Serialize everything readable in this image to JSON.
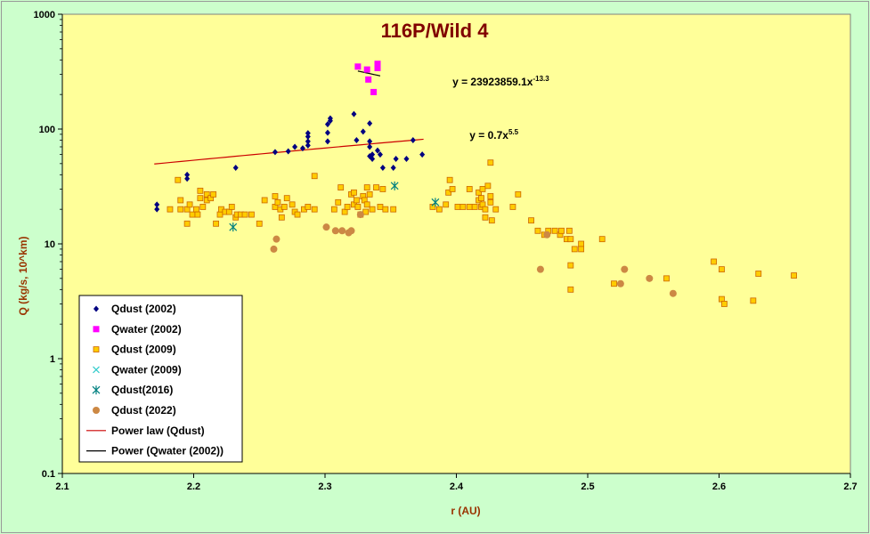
{
  "chart_data": {
    "type": "scatter",
    "title": "116P/Wild 4",
    "xlabel": "r (AU)",
    "ylabel": "Q (kg/s, 10^km)",
    "xlim": [
      2.1,
      2.7
    ],
    "ylim": [
      0.1,
      1000
    ],
    "yscale": "log",
    "grid": false,
    "legend_position": "bottom-left",
    "plot_background": "#ffff99",
    "outer_background": "#ccffcc",
    "x_ticks": [
      "2.1",
      "2.2",
      "2.3",
      "2.4",
      "2.5",
      "2.6",
      "2.7"
    ],
    "y_ticks": [
      "0.1",
      "1",
      "10",
      "100",
      "1000"
    ],
    "annotations": [
      {
        "text_base": "y = 23923859.1x",
        "text_sup": "-13.3",
        "x": 2.397,
        "y": 240
      },
      {
        "text_base": "y = 0.7x",
        "text_sup": "5.5",
        "x": 2.41,
        "y": 82
      }
    ],
    "series": [
      {
        "name": "Qdust (2002)",
        "marker": "diamond",
        "color": "#000080",
        "points": [
          [
            2.172,
            22
          ],
          [
            2.172,
            20
          ],
          [
            2.195,
            40
          ],
          [
            2.195,
            37
          ],
          [
            2.232,
            46
          ],
          [
            2.262,
            63
          ],
          [
            2.272,
            64
          ],
          [
            2.277,
            70
          ],
          [
            2.283,
            68
          ],
          [
            2.287,
            72
          ],
          [
            2.287,
            78
          ],
          [
            2.287,
            86
          ],
          [
            2.287,
            92
          ],
          [
            2.302,
            78
          ],
          [
            2.302,
            93
          ],
          [
            2.302,
            110
          ],
          [
            2.304,
            118
          ],
          [
            2.304,
            124
          ],
          [
            2.322,
            135
          ],
          [
            2.324,
            80
          ],
          [
            2.329,
            95
          ],
          [
            2.334,
            58
          ],
          [
            2.334,
            70
          ],
          [
            2.334,
            78
          ],
          [
            2.334,
            112
          ],
          [
            2.336,
            55
          ],
          [
            2.336,
            60
          ],
          [
            2.34,
            65
          ],
          [
            2.342,
            60
          ],
          [
            2.344,
            46
          ],
          [
            2.352,
            46
          ],
          [
            2.354,
            55
          ],
          [
            2.362,
            55
          ],
          [
            2.367,
            80
          ],
          [
            2.374,
            60
          ]
        ]
      },
      {
        "name": "Qwater (2002)",
        "marker": "square",
        "color": "#ff00ff",
        "points": [
          [
            2.325,
            350
          ],
          [
            2.332,
            330
          ],
          [
            2.333,
            270
          ],
          [
            2.337,
            210
          ],
          [
            2.34,
            340
          ],
          [
            2.34,
            370
          ]
        ]
      },
      {
        "name": "Qdust (2009)",
        "marker": "square",
        "color": "#ffcc00",
        "points": [
          [
            2.182,
            20
          ],
          [
            2.188,
            36
          ],
          [
            2.19,
            24
          ],
          [
            2.19,
            20
          ],
          [
            2.195,
            20
          ],
          [
            2.195,
            15
          ],
          [
            2.197,
            22
          ],
          [
            2.199,
            18
          ],
          [
            2.202,
            20
          ],
          [
            2.203,
            18
          ],
          [
            2.205,
            29
          ],
          [
            2.205,
            25
          ],
          [
            2.207,
            21
          ],
          [
            2.21,
            27
          ],
          [
            2.21,
            24
          ],
          [
            2.213,
            25
          ],
          [
            2.215,
            27
          ],
          [
            2.217,
            15
          ],
          [
            2.22,
            18
          ],
          [
            2.221,
            20
          ],
          [
            2.224,
            19
          ],
          [
            2.227,
            19
          ],
          [
            2.229,
            21
          ],
          [
            2.232,
            17
          ],
          [
            2.233,
            18
          ],
          [
            2.236,
            18
          ],
          [
            2.239,
            18
          ],
          [
            2.244,
            18
          ],
          [
            2.25,
            15
          ],
          [
            2.254,
            24
          ],
          [
            2.262,
            26
          ],
          [
            2.262,
            21
          ],
          [
            2.264,
            23
          ],
          [
            2.266,
            20
          ],
          [
            2.267,
            17
          ],
          [
            2.269,
            21
          ],
          [
            2.271,
            25
          ],
          [
            2.275,
            22
          ],
          [
            2.277,
            19
          ],
          [
            2.279,
            18
          ],
          [
            2.284,
            20
          ],
          [
            2.287,
            21
          ],
          [
            2.292,
            39
          ],
          [
            2.292,
            20
          ],
          [
            2.307,
            20
          ],
          [
            2.31,
            23
          ],
          [
            2.312,
            31
          ],
          [
            2.315,
            19
          ],
          [
            2.317,
            21
          ],
          [
            2.32,
            27
          ],
          [
            2.322,
            28
          ],
          [
            2.322,
            22
          ],
          [
            2.324,
            24
          ],
          [
            2.325,
            21
          ],
          [
            2.327,
            18
          ],
          [
            2.329,
            26
          ],
          [
            2.33,
            24
          ],
          [
            2.331,
            19
          ],
          [
            2.332,
            22
          ],
          [
            2.332,
            31
          ],
          [
            2.334,
            27
          ],
          [
            2.336,
            20
          ],
          [
            2.339,
            31
          ],
          [
            2.342,
            21
          ],
          [
            2.344,
            30
          ],
          [
            2.346,
            20
          ],
          [
            2.352,
            20
          ],
          [
            2.382,
            21
          ],
          [
            2.387,
            20
          ],
          [
            2.392,
            22
          ],
          [
            2.394,
            28
          ],
          [
            2.395,
            36
          ],
          [
            2.397,
            30
          ],
          [
            2.401,
            21
          ],
          [
            2.405,
            21
          ],
          [
            2.41,
            30
          ],
          [
            2.41,
            21
          ],
          [
            2.414,
            21
          ],
          [
            2.417,
            24
          ],
          [
            2.417,
            28
          ],
          [
            2.419,
            25
          ],
          [
            2.419,
            21
          ],
          [
            2.42,
            30
          ],
          [
            2.42,
            22
          ],
          [
            2.422,
            20
          ],
          [
            2.422,
            17
          ],
          [
            2.424,
            32
          ],
          [
            2.426,
            51
          ],
          [
            2.426,
            26
          ],
          [
            2.426,
            23
          ],
          [
            2.427,
            16
          ],
          [
            2.43,
            20
          ],
          [
            2.443,
            21
          ],
          [
            2.447,
            27
          ],
          [
            2.457,
            16
          ],
          [
            2.462,
            13
          ],
          [
            2.467,
            12
          ],
          [
            2.47,
            13
          ],
          [
            2.475,
            13
          ],
          [
            2.479,
            12
          ],
          [
            2.48,
            13
          ],
          [
            2.484,
            11
          ],
          [
            2.486,
            13
          ],
          [
            2.487,
            11
          ],
          [
            2.487,
            6.5
          ],
          [
            2.49,
            9
          ],
          [
            2.495,
            10
          ],
          [
            2.495,
            9
          ],
          [
            2.511,
            11
          ],
          [
            2.52,
            4.5
          ],
          [
            2.56,
            5
          ],
          [
            2.596,
            7
          ],
          [
            2.602,
            6
          ],
          [
            2.602,
            3.3
          ],
          [
            2.604,
            3
          ],
          [
            2.626,
            3.2
          ],
          [
            2.63,
            5.5
          ],
          [
            2.657,
            5.3
          ],
          [
            2.487,
            4
          ]
        ]
      },
      {
        "name": "Qwater (2009)",
        "marker": "x",
        "color": "#33cccc",
        "points": []
      },
      {
        "name": "Qdust(2016)",
        "marker": "asterisk",
        "color": "#008080",
        "points": [
          [
            2.23,
            14
          ],
          [
            2.353,
            32
          ],
          [
            2.384,
            23
          ]
        ]
      },
      {
        "name": "Qdust (2022)",
        "marker": "circle",
        "color": "#cc8844",
        "points": [
          [
            2.261,
            9
          ],
          [
            2.263,
            11
          ],
          [
            2.301,
            14
          ],
          [
            2.308,
            13
          ],
          [
            2.313,
            13
          ],
          [
            2.318,
            12.5
          ],
          [
            2.32,
            13
          ],
          [
            2.327,
            18
          ],
          [
            2.464,
            6
          ],
          [
            2.469,
            12
          ],
          [
            2.525,
            4.5
          ],
          [
            2.528,
            6
          ],
          [
            2.547,
            5
          ],
          [
            2.565,
            3.7
          ]
        ]
      },
      {
        "name": "Power law (Qdust)",
        "marker": "line",
        "color": "#cc0000",
        "x_range": [
          2.17,
          2.375
        ],
        "coef": 0.7,
        "exponent": 5.5
      },
      {
        "name": "Power (Qwater (2002))",
        "marker": "line",
        "color": "#000000",
        "x_range": [
          2.325,
          2.342
        ],
        "coef": 23923859.1,
        "exponent": -13.3
      }
    ]
  }
}
